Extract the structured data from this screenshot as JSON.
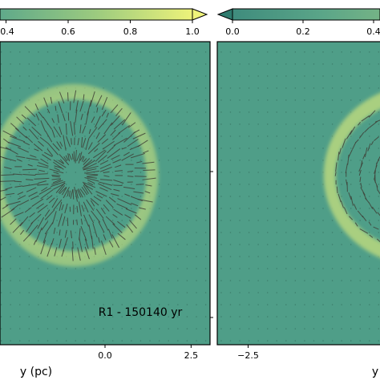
{
  "chart_data": [
    {
      "type": "heatmap",
      "panel": "left",
      "colorbar": {
        "ticks": [
          0.4,
          0.6,
          0.8,
          1.0
        ],
        "tick_labels": [
          "0.4",
          "0.6",
          "0.8",
          "1.0"
        ],
        "range": [
          0.2,
          1.0
        ],
        "extend": "max"
      },
      "x_ticks": [
        0.0,
        2.5
      ],
      "x_tick_labels": [
        "0.0",
        "2.5"
      ],
      "xlabel": "y (pc)",
      "xlim": [
        -3.4,
        3.4
      ],
      "ylim": [
        -3.4,
        3.4
      ],
      "annotation": "R1 - 150140 yr",
      "shell": {
        "cx": -0.9,
        "cy": 0.4,
        "rx_outer": 2.45,
        "ry_outer": 2.05,
        "rx_inner": 2.1,
        "ry_inner": 1.7
      },
      "vector_field": "radial polarization segments"
    },
    {
      "type": "heatmap",
      "panel": "right",
      "colorbar": {
        "ticks": [
          0.0,
          0.2,
          0.4
        ],
        "tick_labels": [
          "0.0",
          "0.2",
          "0.4"
        ],
        "range": [
          0.0,
          0.5
        ],
        "extend": "min"
      },
      "x_ticks": [
        -2.5
      ],
      "x_tick_labels": [
        "−2.5"
      ],
      "xlabel": "y",
      "xlim": [
        -3.4,
        3.4
      ],
      "ylim": [
        -3.4,
        3.4
      ],
      "shell": {
        "cx": 2.6,
        "cy": 0.4,
        "rx_outer": 2.9,
        "ry_outer": 2.05,
        "rx_inner": 2.55,
        "ry_inner": 1.7
      },
      "vector_field": "tangential polarization segments"
    }
  ],
  "colors": {
    "background": "#4f9e88",
    "shell_bright": "#e8ec7a",
    "shell_mid": "#b9d77e",
    "vector": "#3e3f37",
    "grid_dot": "#3d7d6b"
  }
}
